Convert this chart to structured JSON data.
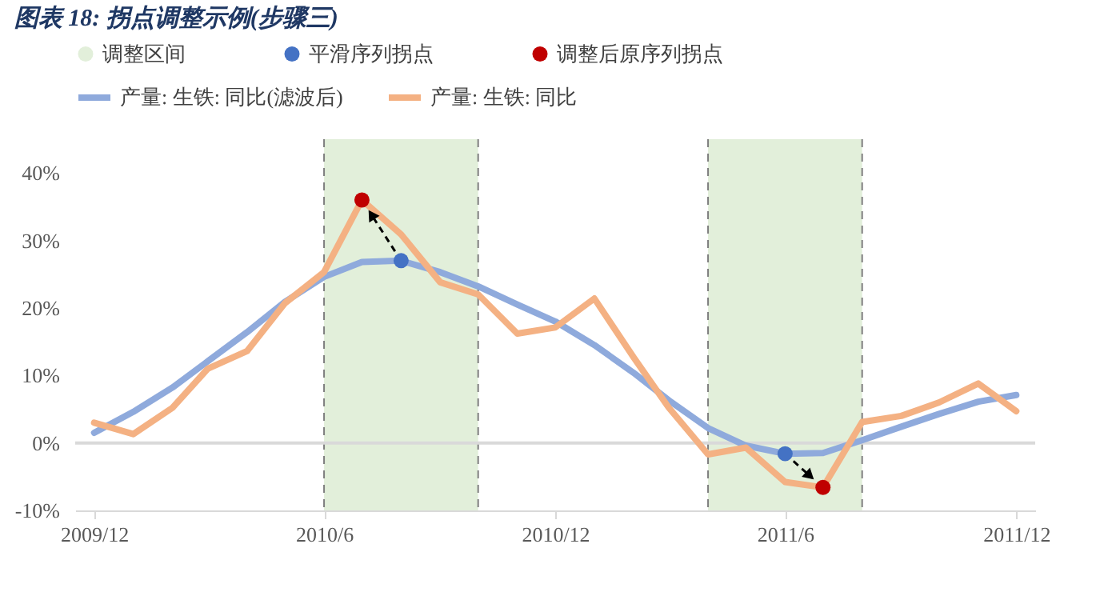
{
  "chart_data": {
    "type": "line",
    "title": "图表 18:  拐点调整示例(步骤三)",
    "x": [
      "2009-12",
      "2010-01",
      "2010-02",
      "2010-03",
      "2010-04",
      "2010-05",
      "2010-06",
      "2010-07",
      "2010-08",
      "2010-09",
      "2010-10",
      "2010-11",
      "2010-12",
      "2011-01",
      "2011-02",
      "2011-03",
      "2011-04",
      "2011-05",
      "2011-06",
      "2011-07",
      "2011-08",
      "2011-09",
      "2011-10",
      "2011-11",
      "2011-12"
    ],
    "series": [
      {
        "name": "产量: 生铁: 同比(滤波后)",
        "color": "#8faadc",
        "values": [
          1.5,
          4.6,
          8.2,
          12.1,
          16.4,
          20.9,
          24.6,
          26.8,
          27.0,
          25.3,
          23.2,
          20.5,
          18.0,
          14.5,
          10.4,
          6.3,
          2.2,
          -0.4,
          -1.6,
          -1.5,
          0.4,
          2.4,
          4.3,
          6.1,
          7.1
        ]
      },
      {
        "name": "产量: 生铁: 同比",
        "color": "#f4b183",
        "values": [
          3.0,
          1.3,
          5.2,
          11.0,
          13.6,
          20.7,
          25.3,
          36.0,
          30.9,
          23.8,
          22.0,
          16.2,
          17.1,
          21.4,
          12.7,
          5.2,
          -1.7,
          -0.7,
          -5.8,
          -6.6,
          3.1,
          4.0,
          6.0,
          8.8,
          4.7
        ]
      },
      {
        "name": "平滑序列拐点",
        "type": "scatter",
        "marker": "circle",
        "color": "#4472c4",
        "x": [
          "2010-08",
          "2011-06"
        ],
        "values": [
          27.0,
          -1.6
        ]
      },
      {
        "name": "调整后原序列拐点",
        "type": "scatter",
        "marker": "circle",
        "color": "#c00000",
        "x": [
          "2010-07",
          "2011-07"
        ],
        "values": [
          36.0,
          -6.6
        ]
      }
    ],
    "bands": [
      {
        "axis": "x",
        "from": "2010-06",
        "to": "2010-10",
        "label": "调整区间",
        "color": "#e2efda"
      },
      {
        "axis": "x",
        "from": "2011-04",
        "to": "2011-08",
        "color": "#e2efda"
      }
    ],
    "ref_lines": [
      {
        "axis": "y",
        "value": 0,
        "color": "#d9d9d9"
      }
    ],
    "xlim": [
      "2009-11-16",
      "2011-12-16"
    ],
    "xticks": [
      {
        "value": "2009-12",
        "label": "2009/12"
      },
      {
        "value": "2010-06",
        "label": "2010/6"
      },
      {
        "value": "2010-12",
        "label": "2010/12"
      },
      {
        "value": "2011-06",
        "label": "2011/6"
      },
      {
        "value": "2011-12",
        "label": "2011/12"
      }
    ],
    "ylim": [
      -10,
      45
    ],
    "yticks": [
      {
        "value": -10,
        "label": "-10%"
      },
      {
        "value": 0,
        "label": "0%"
      },
      {
        "value": 10,
        "label": "10%"
      },
      {
        "value": 20,
        "label": "20%"
      },
      {
        "value": 30,
        "label": "30%"
      },
      {
        "value": 40,
        "label": "40%"
      }
    ],
    "grid": false,
    "legend": "top",
    "line_style": "solid",
    "marker": "none"
  }
}
